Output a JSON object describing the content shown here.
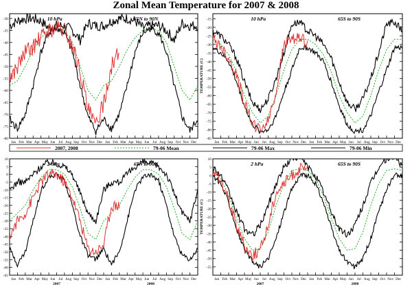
{
  "figure": {
    "title": "Zonal Mean Temperature for 2007 & 2008",
    "ylabel": "TEMPERATURE (C)",
    "months": [
      "Jan",
      "Feb",
      "Mar",
      "Apr",
      "May",
      "Jun",
      "Jul",
      "Aug",
      "Sep",
      "Oct",
      "Nov",
      "Dec",
      "Jan",
      "Feb",
      "Mar",
      "Apr",
      "May",
      "Jun",
      "Jul",
      "Aug",
      "Sep",
      "Oct",
      "Nov",
      "Dec"
    ],
    "year_labels": [
      "2007",
      "2008"
    ],
    "legend": [
      {
        "label": "2007, 2008",
        "color": "#e03030",
        "dash": "solid"
      },
      {
        "label": "79-06 Mean",
        "color": "#22aa22",
        "dash": "dotted"
      },
      {
        "label": "79-06 Max",
        "color": "#000000",
        "dash": "solid"
      },
      {
        "label": "79-06 Min",
        "color": "#000000",
        "dash": "solid"
      }
    ]
  },
  "chart_data": [
    {
      "type": "line",
      "level": "10 hPa",
      "region": "65N to 90N",
      "xlabel": "",
      "ylabel": "TEMPERATURE (C)",
      "ylim": [
        -80,
        -28
      ],
      "yticks": [
        -80,
        -75,
        -70,
        -65,
        -60,
        -55,
        -50,
        -45,
        -40,
        -35,
        -30
      ],
      "x_months": [
        0,
        1,
        2,
        3,
        4,
        5,
        6,
        7,
        8,
        9,
        10,
        11,
        12,
        13,
        14,
        15,
        16,
        17,
        18,
        19,
        20,
        21,
        22,
        23,
        24
      ],
      "series": [
        {
          "name": "79-06 Max",
          "values": [
            -33,
            -31,
            -30,
            -30,
            -31,
            -34,
            -33,
            -33,
            -35,
            -39,
            -32,
            -33,
            -33,
            -31,
            -30,
            -30,
            -31,
            -34,
            -33,
            -33,
            -35,
            -39,
            -32,
            -33,
            -33
          ]
        },
        {
          "name": "79-06 Mean",
          "values": [
            -58,
            -56,
            -50,
            -43,
            -38,
            -35,
            -34,
            -35,
            -40,
            -50,
            -60,
            -64,
            -58,
            -56,
            -50,
            -43,
            -38,
            -35,
            -34,
            -35,
            -40,
            -50,
            -60,
            -64,
            -58
          ]
        },
        {
          "name": "79-06 Min",
          "values": [
            -72,
            -76,
            -70,
            -58,
            -44,
            -36,
            -34,
            -36,
            -44,
            -58,
            -71,
            -77,
            -72,
            -76,
            -70,
            -58,
            -44,
            -36,
            -34,
            -36,
            -44,
            -58,
            -71,
            -77,
            -72
          ]
        },
        {
          "name": "2007, 2008",
          "values": [
            -55,
            -50,
            -44,
            -42,
            -38,
            -35,
            -34,
            -35,
            -41,
            -52,
            -68,
            -75,
            -65,
            -50,
            -44,
            null,
            null,
            null,
            null,
            null,
            null,
            null,
            null,
            null,
            null
          ]
        }
      ]
    },
    {
      "type": "line",
      "level": "10 hPa",
      "region": "65S to 90S",
      "xlabel": "",
      "ylabel": "TEMPERATURE (C)",
      "ylim": [
        -85,
        -12
      ],
      "yticks": [
        -85,
        -80,
        -75,
        -70,
        -65,
        -60,
        -55,
        -50,
        -45,
        -40,
        -35,
        -30,
        -25,
        -20,
        -15
      ],
      "x_months": [
        0,
        1,
        2,
        3,
        4,
        5,
        6,
        7,
        8,
        9,
        10,
        11,
        12,
        13,
        14,
        15,
        16,
        17,
        18,
        19,
        20,
        21,
        22,
        23,
        24
      ],
      "series": [
        {
          "name": "79-06 Max",
          "values": [
            -22,
            -25,
            -30,
            -38,
            -52,
            -64,
            -68,
            -62,
            -50,
            -35,
            -18,
            -17,
            -22,
            -25,
            -30,
            -38,
            -52,
            -64,
            -68,
            -62,
            -50,
            -35,
            -18,
            -17,
            -22
          ]
        },
        {
          "name": "79-06 Mean",
          "values": [
            -27,
            -30,
            -36,
            -46,
            -60,
            -70,
            -76,
            -72,
            -60,
            -45,
            -33,
            -27,
            -27,
            -30,
            -36,
            -46,
            -60,
            -70,
            -76,
            -72,
            -60,
            -45,
            -33,
            -27,
            -27
          ]
        },
        {
          "name": "79-06 Min",
          "values": [
            -32,
            -35,
            -40,
            -52,
            -66,
            -77,
            -81,
            -80,
            -72,
            -58,
            -45,
            -32,
            -32,
            -35,
            -40,
            -52,
            -66,
            -77,
            -81,
            -80,
            -72,
            -58,
            -45,
            -32,
            -32
          ]
        },
        {
          "name": "2007, 2008",
          "values": [
            -27,
            -31,
            -38,
            -48,
            -64,
            -76,
            -80,
            -75,
            -58,
            -30,
            -26,
            -27,
            -28,
            null,
            null,
            null,
            null,
            null,
            null,
            null,
            null,
            null,
            null,
            null,
            null
          ]
        }
      ]
    },
    {
      "type": "line",
      "level": "2 hPa",
      "region": "65N to 90N",
      "xlabel": "",
      "ylabel": "TEMPERATURE (C)",
      "ylim": [
        -65,
        10
      ],
      "yticks": [
        -65,
        -60,
        -55,
        -50,
        -45,
        -40,
        -35,
        -30,
        -25,
        -20,
        -15,
        -10,
        -5,
        0,
        5,
        10
      ],
      "x_months": [
        0,
        1,
        2,
        3,
        4,
        5,
        6,
        7,
        8,
        9,
        10,
        11,
        12,
        13,
        14,
        15,
        16,
        17,
        18,
        19,
        20,
        21,
        22,
        23,
        24
      ],
      "series": [
        {
          "name": "79-06 Max",
          "values": [
            -10,
            -5,
            -5,
            0,
            5,
            8,
            7,
            5,
            0,
            -12,
            -25,
            -30,
            -10,
            -5,
            -5,
            0,
            5,
            8,
            7,
            5,
            0,
            -12,
            -25,
            -30,
            -10
          ]
        },
        {
          "name": "79-06 Mean",
          "values": [
            -30,
            -25,
            -20,
            -10,
            -2,
            3,
            3,
            0,
            -8,
            -22,
            -38,
            -42,
            -30,
            -25,
            -20,
            -10,
            -2,
            3,
            3,
            0,
            -8,
            -22,
            -38,
            -42,
            -30
          ]
        },
        {
          "name": "79-06 Min",
          "values": [
            -48,
            -58,
            -50,
            -30,
            -10,
            -2,
            0,
            -4,
            -20,
            -40,
            -52,
            -55,
            -48,
            -58,
            -50,
            -30,
            -10,
            -2,
            0,
            -4,
            -20,
            -40,
            -52,
            -55,
            -48
          ]
        },
        {
          "name": "2007, 2008",
          "values": [
            -40,
            -30,
            -25,
            -15,
            -5,
            0,
            0,
            -5,
            -15,
            -30,
            -48,
            -50,
            -45,
            -20,
            -20,
            null,
            null,
            null,
            null,
            null,
            null,
            null,
            null,
            null,
            null
          ]
        }
      ]
    },
    {
      "type": "line",
      "level": "2 hPa",
      "region": "65S to 90S",
      "xlabel": "",
      "ylabel": "TEMPERATURE (C)",
      "ylim": [
        -60,
        10
      ],
      "yticks": [
        -55,
        -50,
        -45,
        -40,
        -35,
        -30,
        -25,
        -20,
        -15,
        -10,
        -5,
        0,
        5,
        10
      ],
      "x_months": [
        0,
        1,
        2,
        3,
        4,
        5,
        6,
        7,
        8,
        9,
        10,
        11,
        12,
        13,
        14,
        15,
        16,
        17,
        18,
        19,
        20,
        21,
        22,
        23,
        24
      ],
      "series": [
        {
          "name": "79-06 Max",
          "values": [
            5,
            0,
            -10,
            -22,
            -32,
            -36,
            -30,
            -18,
            -5,
            5,
            10,
            12,
            5,
            0,
            -10,
            -22,
            -32,
            -36,
            -30,
            -18,
            -5,
            5,
            10,
            12,
            5
          ]
        },
        {
          "name": "79-06 Mean",
          "values": [
            3,
            -2,
            -12,
            -26,
            -38,
            -45,
            -44,
            -34,
            -18,
            -5,
            3,
            4,
            3,
            -2,
            -12,
            -26,
            -38,
            -45,
            -44,
            -34,
            -18,
            -5,
            3,
            4,
            3
          ]
        },
        {
          "name": "79-06 Min",
          "values": [
            0,
            -5,
            -16,
            -32,
            -45,
            -52,
            -55,
            -50,
            -38,
            -22,
            -8,
            0,
            0,
            -5,
            -16,
            -32,
            -45,
            -52,
            -55,
            -50,
            -38,
            -22,
            -8,
            0,
            0
          ]
        },
        {
          "name": "2007, 2008",
          "values": [
            2,
            -3,
            -14,
            -30,
            -42,
            -48,
            -45,
            -30,
            -10,
            -5,
            0,
            4,
            3,
            null,
            null,
            null,
            null,
            null,
            null,
            null,
            null,
            null,
            null,
            null,
            null
          ]
        }
      ]
    }
  ]
}
